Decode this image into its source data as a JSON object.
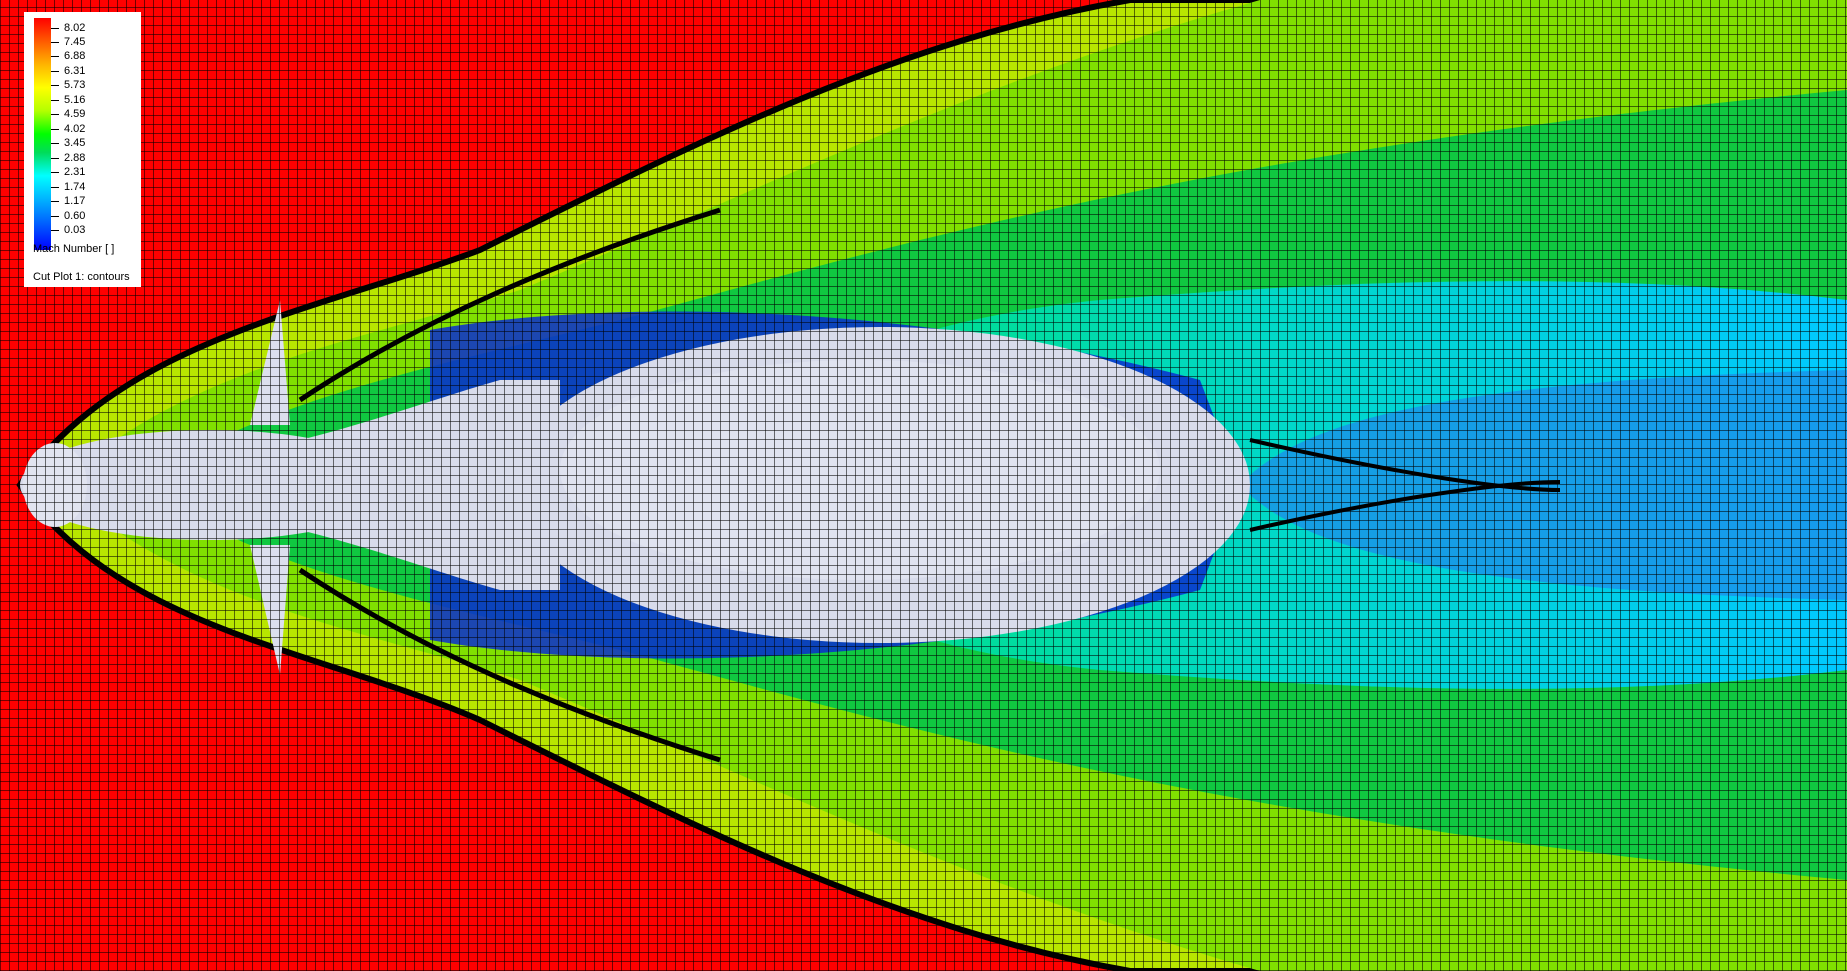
{
  "legend": {
    "ticks": [
      "8.02",
      "7.45",
      "6.88",
      "6.31",
      "5.73",
      "5.16",
      "4.59",
      "4.02",
      "3.45",
      "2.88",
      "2.31",
      "1.74",
      "1.17",
      "0.60",
      "0.03"
    ],
    "variable": "Mach Number [ ]",
    "plot_name": "Cut Plot 1: contours"
  },
  "colors": {
    "freestream": "#ff0000",
    "body": "#d8dbeb",
    "shock": "#000000",
    "colormap": [
      "#ff0000",
      "#ffff00",
      "#00ff00",
      "#00ffff",
      "#0000ff"
    ]
  }
}
